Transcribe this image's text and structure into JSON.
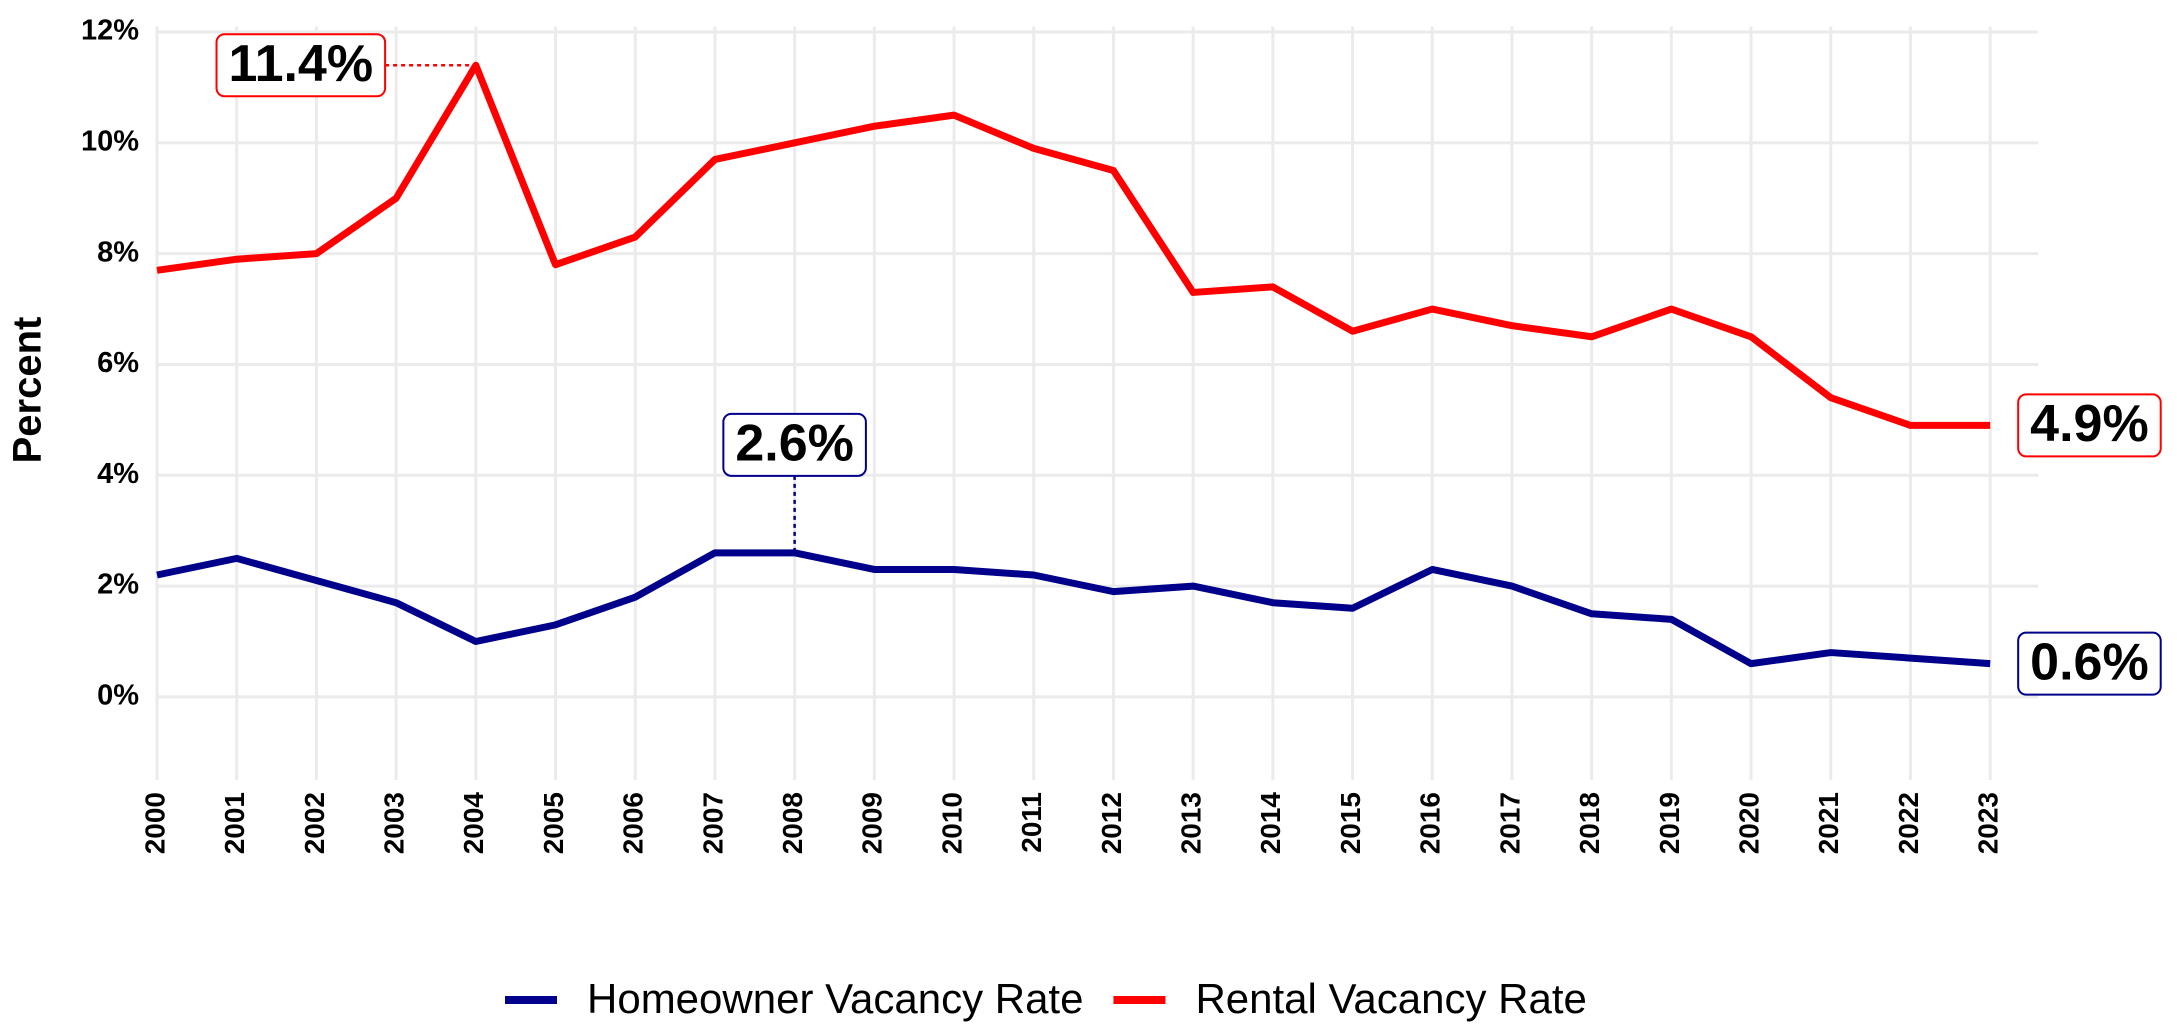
{
  "chart_data": {
    "type": "line",
    "y_label": "Percent",
    "x": [
      2000,
      2001,
      2002,
      2003,
      2004,
      2005,
      2006,
      2007,
      2008,
      2009,
      2010,
      2011,
      2012,
      2013,
      2014,
      2015,
      2016,
      2017,
      2018,
      2019,
      2020,
      2021,
      2022,
      2023
    ],
    "series": [
      {
        "name": "Homeowner Vacancy Rate",
        "color": "#00008b",
        "values": [
          2.2,
          2.5,
          2.1,
          1.7,
          1.0,
          1.3,
          1.8,
          2.6,
          2.6,
          2.3,
          2.3,
          2.2,
          1.9,
          2.0,
          1.7,
          1.6,
          2.3,
          2.0,
          1.5,
          1.4,
          0.6,
          0.8,
          0.7,
          0.6
        ]
      },
      {
        "name": "Rental Vacancy Rate",
        "color": "#ff0000",
        "values": [
          7.7,
          7.9,
          8.0,
          9.0,
          11.4,
          7.8,
          8.3,
          9.7,
          10.0,
          10.3,
          10.5,
          9.9,
          9.5,
          7.3,
          7.4,
          6.6,
          7.0,
          6.7,
          6.5,
          7.0,
          6.5,
          5.4,
          4.9,
          4.9
        ]
      }
    ],
    "annotations": [
      {
        "label": "11.4%",
        "x": 2004,
        "value": 11.4,
        "color": "#ff0000"
      },
      {
        "label": "2.6%",
        "x": 2008,
        "value": 2.6,
        "color": "#00008b"
      },
      {
        "label": "4.9%",
        "x": 2023,
        "value": 4.9,
        "color": "#ff0000"
      },
      {
        "label": "0.6%",
        "x": 2023,
        "value": 0.6,
        "color": "#00008b"
      }
    ],
    "xlim": [
      2000,
      2023.6
    ],
    "xticks": [
      2000,
      2001,
      2002,
      2003,
      2004,
      2005,
      2006,
      2007,
      2008,
      2009,
      2010,
      2011,
      2012,
      2013,
      2014,
      2015,
      2016,
      2017,
      2018,
      2019,
      2020,
      2021,
      2022,
      2023
    ],
    "ylim": [
      -1.5,
      12.1
    ],
    "yticks": [
      {
        "value": 0,
        "label": "0%"
      },
      {
        "value": 2,
        "label": "2%"
      },
      {
        "value": 4,
        "label": "4%"
      },
      {
        "value": 6,
        "label": "6%"
      },
      {
        "value": 8,
        "label": "8%"
      },
      {
        "value": 10,
        "label": "10%"
      },
      {
        "value": 12,
        "label": "12%"
      }
    ],
    "grid": true,
    "legend": "bottom"
  }
}
